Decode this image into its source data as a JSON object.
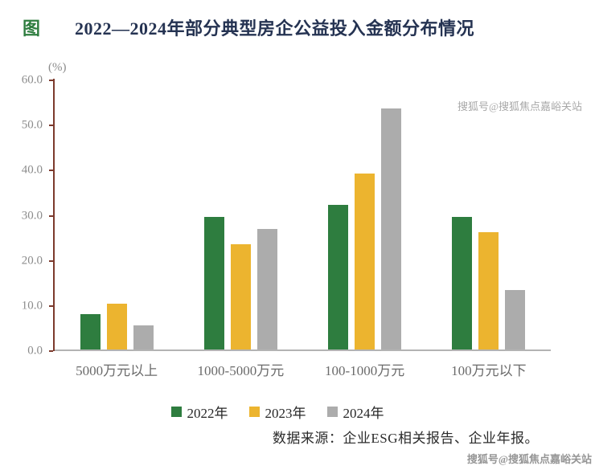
{
  "header": {
    "fig_label": "图",
    "title": "2022—2024年部分典型房企公益投入金额分布情况"
  },
  "chart_data": {
    "type": "bar",
    "unit_label": "(%)",
    "categories": [
      "5000万元以上",
      "1000-5000万元",
      "100-1000万元",
      "100万元以下"
    ],
    "series": [
      {
        "name": "2022年",
        "color": "#2e7d3f",
        "values": [
          7.8,
          29.5,
          32.3,
          29.5
        ]
      },
      {
        "name": "2023年",
        "color": "#ecb42f",
        "values": [
          10.2,
          23.5,
          39.3,
          26.2
        ]
      },
      {
        "name": "2024年",
        "color": "#acacac",
        "values": [
          5.3,
          26.8,
          53.8,
          13.2
        ]
      }
    ],
    "ylim": [
      0,
      60
    ],
    "yticks": [
      "60.0",
      "50.0",
      "40.0",
      "30.0",
      "20.0",
      "10.0",
      "0.0"
    ],
    "legend_position": "bottom",
    "grid": false,
    "axis_colors": {
      "y_axis_line": "#7c3a2d",
      "x_axis_line": "#b3b3b3"
    }
  },
  "footer": {
    "source": "数据来源：企业ESG相关报告、企业年报。"
  },
  "watermark": {
    "text": "搜狐号@搜狐焦点嘉峪关站"
  }
}
